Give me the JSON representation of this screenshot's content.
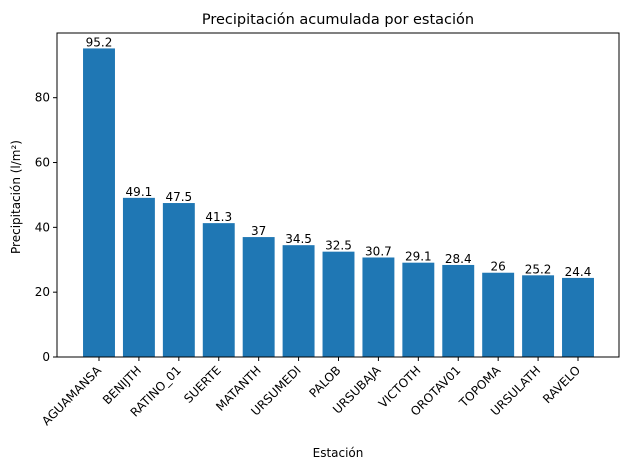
{
  "chart_data": {
    "type": "bar",
    "title": "Precipitación acumulada por estación",
    "xlabel": "Estación",
    "ylabel": "Precipitación (l/m²)",
    "categories": [
      "AGUAMANSA",
      "BENIJTH",
      "RATINO_01",
      "SUERTE",
      "MATANTH",
      "URSUMEDI",
      "PALOB",
      "URSUBAJA",
      "VICTOTH",
      "OROTAV01",
      "TOPOMA",
      "URSULATH",
      "RAVELO"
    ],
    "values": [
      95.2,
      49.1,
      47.5,
      41.3,
      37,
      34.5,
      32.5,
      30.7,
      29.1,
      28.4,
      26,
      25.2,
      24.4
    ],
    "data_labels": [
      "95.2",
      "49.1",
      "47.5",
      "41.3",
      "37",
      "34.5",
      "32.5",
      "30.7",
      "29.1",
      "28.4",
      "26",
      "25.2",
      "24.4"
    ],
    "ylim": [
      0,
      99.96
    ],
    "yticks": [
      0,
      20,
      40,
      60,
      80
    ],
    "ytick_labels": [
      "0",
      "20",
      "40",
      "60",
      "80"
    ],
    "bar_color": "#1f77b4",
    "grid": false
  }
}
